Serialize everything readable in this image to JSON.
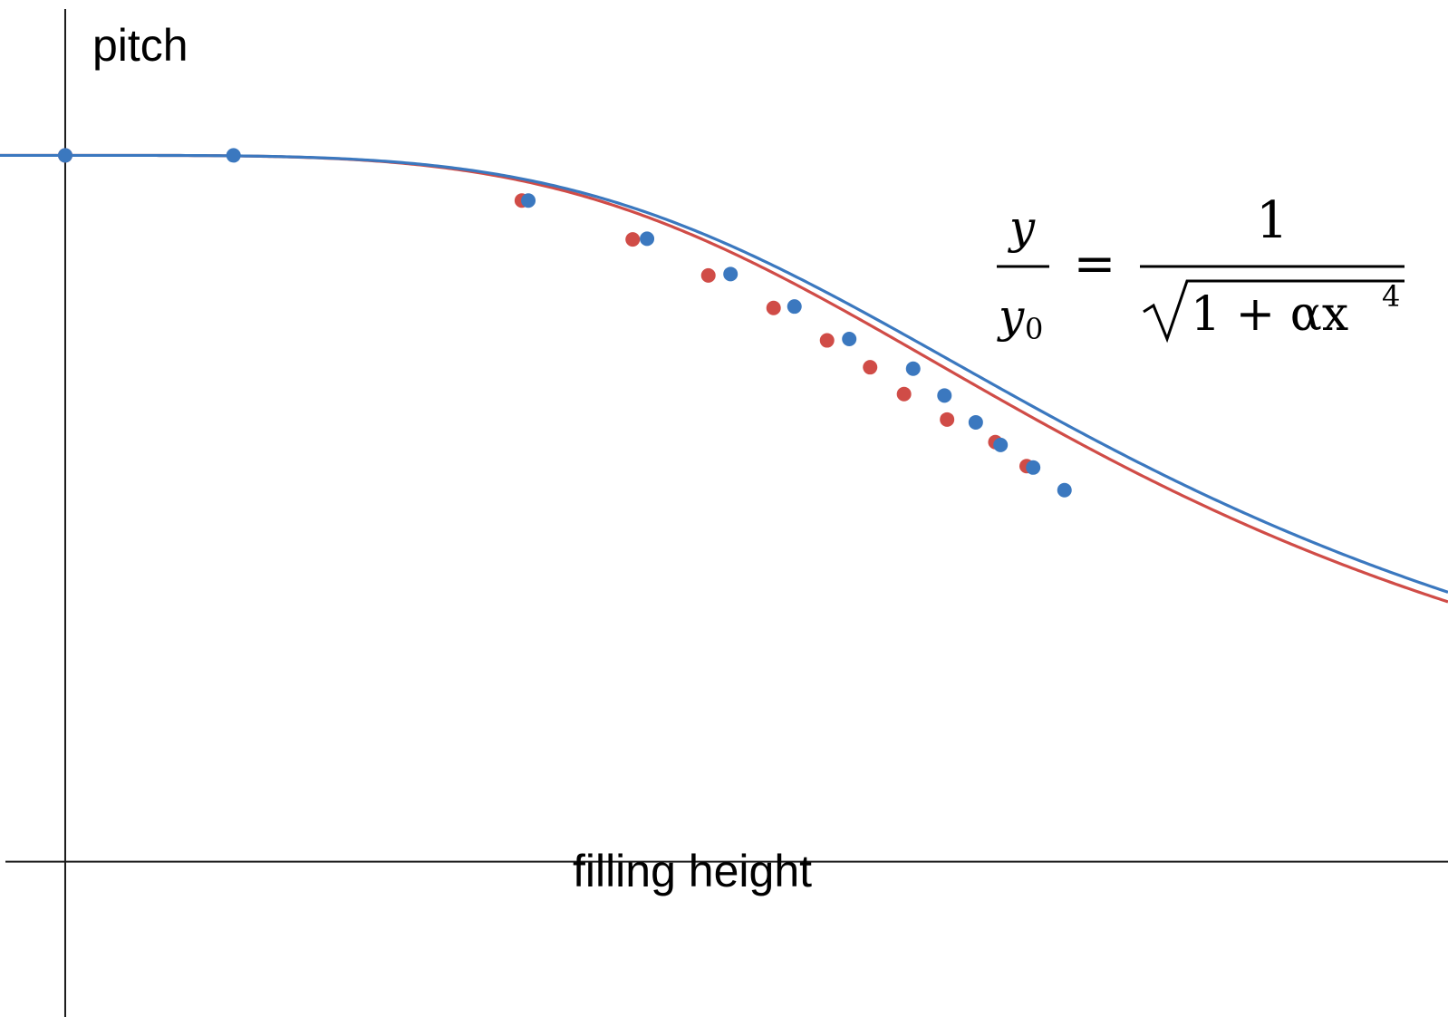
{
  "chart_data": {
    "type": "scatter",
    "title": "",
    "xlabel": "filling height",
    "ylabel": "pitch",
    "xlim": [
      -0.5,
      10.6
    ],
    "ylim": [
      -0.22,
      1.22
    ],
    "grid": false,
    "legend": "none",
    "annotation": {
      "lhs_num": "y",
      "lhs_den": "y",
      "lhs_den_sub": "0",
      "equals": "=",
      "rhs_num": "1",
      "rhs_den": "1 + αx",
      "rhs_den_sup": "4"
    },
    "series": [
      {
        "color": "#d04c47",
        "alpha": 0.000506,
        "points": [
          {
            "x": 0.0,
            "y": 1.0
          },
          {
            "x": 3.5,
            "y": 0.936
          },
          {
            "x": 4.35,
            "y": 0.881
          },
          {
            "x": 4.93,
            "y": 0.83
          },
          {
            "x": 5.43,
            "y": 0.784
          },
          {
            "x": 5.84,
            "y": 0.738
          },
          {
            "x": 6.17,
            "y": 0.7
          },
          {
            "x": 6.43,
            "y": 0.662
          },
          {
            "x": 6.76,
            "y": 0.626
          },
          {
            "x": 7.13,
            "y": 0.594
          },
          {
            "x": 7.37,
            "y": 0.56
          }
        ]
      },
      {
        "color": "#3b78bf",
        "alpha": 0.000465,
        "points": [
          {
            "x": 0.0,
            "y": 1.0
          },
          {
            "x": 1.29,
            "y": 1.0
          },
          {
            "x": 3.55,
            "y": 0.936
          },
          {
            "x": 4.46,
            "y": 0.882
          },
          {
            "x": 5.1,
            "y": 0.832
          },
          {
            "x": 5.59,
            "y": 0.786
          },
          {
            "x": 6.01,
            "y": 0.74
          },
          {
            "x": 6.5,
            "y": 0.698
          },
          {
            "x": 6.74,
            "y": 0.66
          },
          {
            "x": 6.98,
            "y": 0.622
          },
          {
            "x": 7.17,
            "y": 0.59
          },
          {
            "x": 7.42,
            "y": 0.558
          },
          {
            "x": 7.66,
            "y": 0.526
          }
        ]
      }
    ]
  }
}
